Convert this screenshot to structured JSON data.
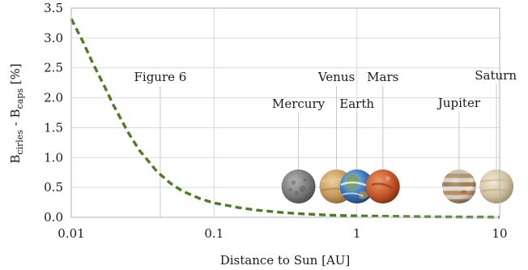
{
  "chart_data": {
    "type": "line",
    "xlabel": "Distance to Sun [AU]",
    "ylabel": {
      "main_1": "B",
      "sub_1": "cirles",
      "mid": " - B",
      "sub_2": "caps",
      "tail": " [%]"
    },
    "xscale": "log",
    "xlim": [
      0.01,
      10
    ],
    "ylim": [
      0.0,
      3.5
    ],
    "x_ticks": [
      {
        "value": 0.01,
        "label": "0.01"
      },
      {
        "value": 0.1,
        "label": "0.1"
      },
      {
        "value": 1,
        "label": "1"
      },
      {
        "value": 10,
        "label": "10"
      }
    ],
    "y_ticks": [
      {
        "value": 0.0,
        "label": "0.0"
      },
      {
        "value": 0.5,
        "label": "0.5"
      },
      {
        "value": 1.0,
        "label": "1.0"
      },
      {
        "value": 1.5,
        "label": "1.5"
      },
      {
        "value": 2.0,
        "label": "2.0"
      },
      {
        "value": 2.5,
        "label": "2.5"
      },
      {
        "value": 3.0,
        "label": "3.0"
      },
      {
        "value": 3.5,
        "label": "3.5"
      }
    ],
    "grid": true,
    "series": [
      {
        "color": "#4f7a28",
        "style": "dashed",
        "x": [
          0.01,
          0.012,
          0.014,
          0.017,
          0.02,
          0.025,
          0.03,
          0.04,
          0.05,
          0.06,
          0.08,
          0.1,
          0.15,
          0.2,
          0.3,
          0.4,
          0.6,
          0.8,
          1,
          1.5,
          2,
          3,
          5,
          7,
          10
        ],
        "y": [
          3.32,
          2.95,
          2.6,
          2.2,
          1.85,
          1.42,
          1.12,
          0.76,
          0.56,
          0.44,
          0.31,
          0.24,
          0.16,
          0.12,
          0.08,
          0.06,
          0.04,
          0.03,
          0.025,
          0.018,
          0.013,
          0.009,
          0.006,
          0.004,
          0.003
        ]
      }
    ],
    "annotations": [
      {
        "label": "Figure 6",
        "x": 0.042,
        "image": false,
        "color": ""
      },
      {
        "label": "Mercury",
        "x": 0.39,
        "image": true,
        "color": "#8a8a8a",
        "icon": "mercury-icon"
      },
      {
        "label": "Venus",
        "x": 0.72,
        "image": true,
        "color": "#c9a26a",
        "icon": "venus-icon"
      },
      {
        "label": "Earth",
        "x": 1.0,
        "image": true,
        "color": "#4f88c6",
        "icon": "earth-icon"
      },
      {
        "label": "Mars",
        "x": 1.52,
        "image": true,
        "color": "#c4572a",
        "icon": "mars-icon"
      },
      {
        "label": "Jupiter",
        "x": 5.2,
        "image": true,
        "color": "#c8b9a4",
        "icon": "jupiter-icon"
      },
      {
        "label": "Saturn",
        "x": 9.5,
        "image": true,
        "color": "#d8cdb4",
        "icon": "saturn-icon"
      }
    ]
  }
}
